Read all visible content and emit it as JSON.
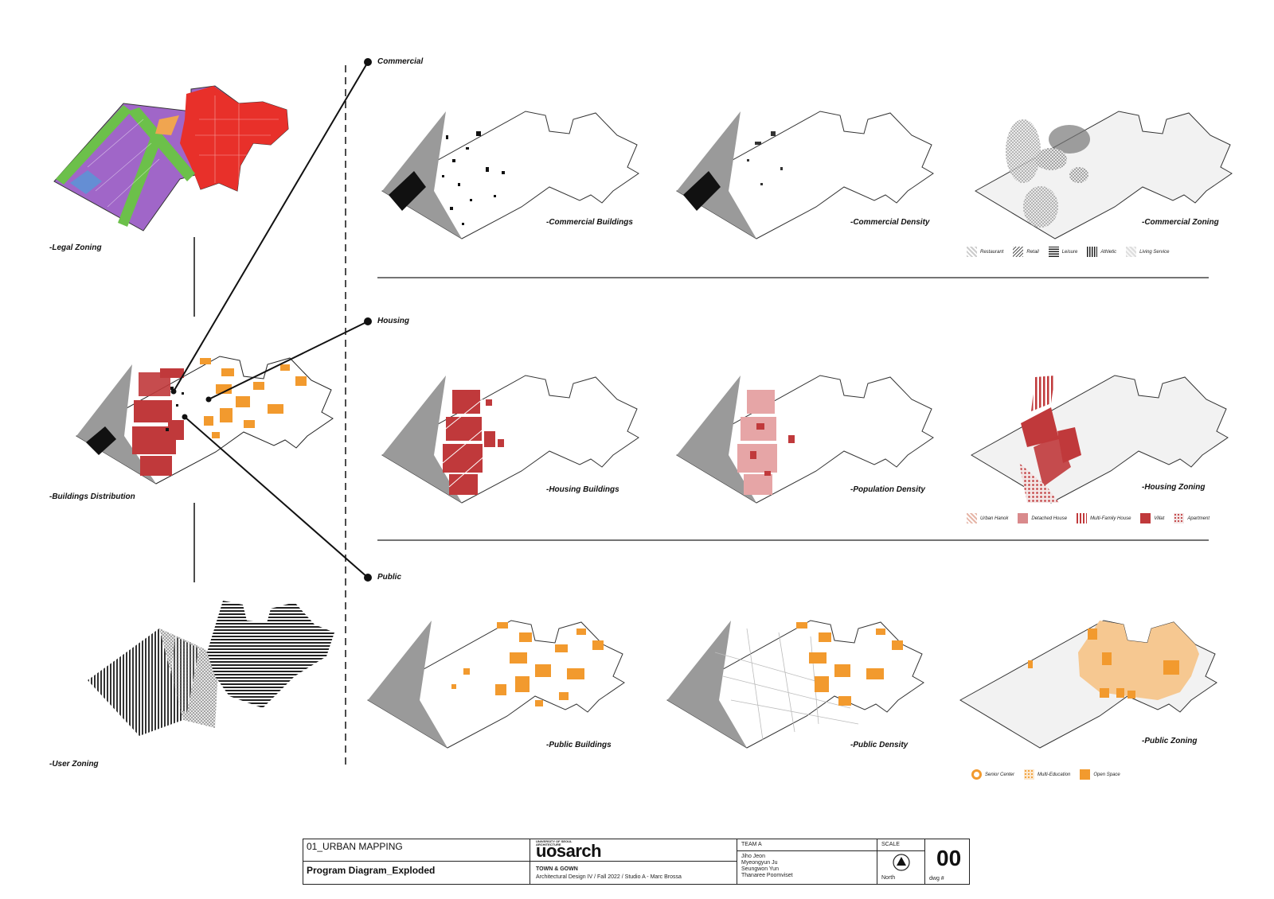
{
  "sections": {
    "commercial": "Commercial",
    "housing": "Housing",
    "public": "Public"
  },
  "left_maps": {
    "legal": "-Legal Zoning",
    "buildings": "-Buildings Distribution",
    "user": "-User Zoning"
  },
  "map_labels": {
    "commercial_buildings": "-Commercial Buildings",
    "commercial_density": "-Commercial Density",
    "commercial_zoning": "-Commercial Zoning",
    "housing_buildings": "-Housing Buildings",
    "population_density": "-Population Density",
    "housing_zoning": "-Housing Zoning",
    "public_buildings": "-Public Buildings",
    "public_density": "-Public Density",
    "public_zoning": "-Public Zoning"
  },
  "legends": {
    "commercial": [
      "Restaurant",
      "Retail",
      "Leisure",
      "Athletic",
      "Living Service"
    ],
    "housing": [
      "Urban Hanok",
      "Detached House",
      "Multi-Family House",
      "Villat",
      "Apartment"
    ],
    "public": [
      "Senior Center",
      "Multi-Education",
      "Open Space"
    ]
  },
  "colors": {
    "commercial_red": "#e8302a",
    "legal_purple": "#a066c8",
    "legal_green": "#6cc04a",
    "housing_red": "#c0393b",
    "public_orange": "#f29a2e",
    "grey": "#9a9a9a"
  },
  "title_block": {
    "project": "01_URBAN MAPPING",
    "drawing": "Program Diagram_Exploded",
    "uni_small": "UNIVERSITY OF SEOUL ARCHITECTURE",
    "logo": "uosarch",
    "course_title": "TOWN & GOWN",
    "course": "Architectural Design IV / Fall 2022 / Studio A - Marc Brossa",
    "team": "TEAM A",
    "members": [
      "Jiho Jeon",
      "Myeongyun Ju",
      "Seungwon Yun",
      "Thanaree Poomviset"
    ],
    "scale": "SCALE",
    "north": "North",
    "dwg_no": "00",
    "dwg_label": "dwg #"
  }
}
